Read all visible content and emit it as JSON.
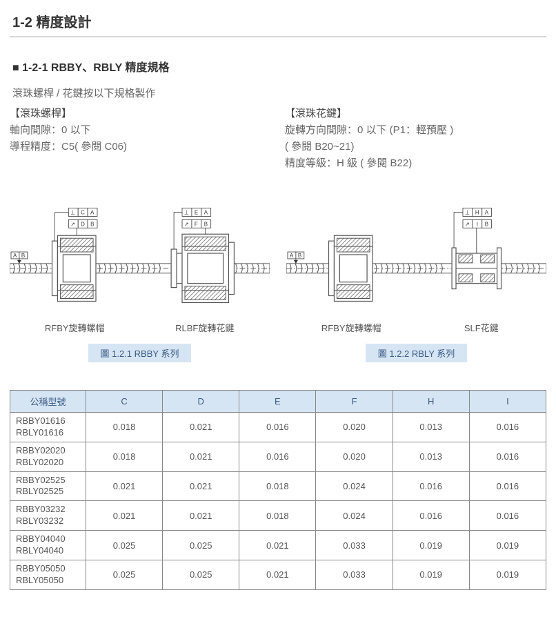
{
  "header": "1-2 精度設計",
  "subheader": "■ 1-2-1 RBBY、RBLY 精度規格",
  "intro": "滾珠螺桿 / 花鍵按以下規格製作",
  "left_spec": {
    "title": "【滾珠螺桿】",
    "l1": "軸向間隙：0 以下",
    "l2": "導程精度：C5( 參閱 C06)"
  },
  "right_spec": {
    "title": "【滾珠花鍵】",
    "l1": "旋轉方向間隙：0 以下 (P1：輕預壓 )",
    "l2": "( 參閱 B20~21)",
    "l3": "精度等級：H 級 ( 參閱 B22)"
  },
  "fig1": {
    "part1": "RFBY旋轉螺帽",
    "part2": "RLBF旋轉花鍵",
    "caption": "圖 1.2.1 RBBY 系列",
    "callouts": {
      "left_top": "C",
      "left_top2": "A",
      "left_bot": "D",
      "left_bot2": "B",
      "right_top": "E",
      "right_top2": "A",
      "right_bot": "F",
      "right_bot2": "B",
      "shaft1": "A",
      "shaft2": "B"
    },
    "symbols": {
      "perp": "⊥",
      "runout": "↗"
    }
  },
  "fig2": {
    "part1": "RFBY旋轉螺帽",
    "part2": "SLF花鍵",
    "caption": "圖 1.2.2 RBLY 系列",
    "callouts": {
      "right_top": "H",
      "right_top2": "A",
      "right_bot": "I",
      "right_bot2": "B",
      "shaft1": "A",
      "shaft2": "B"
    },
    "symbols": {
      "perp": "⊥",
      "runout": "↗"
    }
  },
  "table": {
    "headers": [
      "公稱型號",
      "C",
      "D",
      "E",
      "F",
      "H",
      "I"
    ],
    "rows": [
      {
        "model": "RBBY01616\nRBLY01616",
        "v": [
          "0.018",
          "0.021",
          "0.016",
          "0.020",
          "0.013",
          "0.016"
        ]
      },
      {
        "model": "RBBY02020\nRBLY02020",
        "v": [
          "0.018",
          "0.021",
          "0.016",
          "0.020",
          "0.013",
          "0.016"
        ]
      },
      {
        "model": "RBBY02525\nRBLY02525",
        "v": [
          "0.021",
          "0.021",
          "0.018",
          "0.024",
          "0.016",
          "0.016"
        ]
      },
      {
        "model": "RBBY03232\nRBLY03232",
        "v": [
          "0.021",
          "0.021",
          "0.018",
          "0.024",
          "0.016",
          "0.016"
        ]
      },
      {
        "model": "RBBY04040\nRBLY04040",
        "v": [
          "0.025",
          "0.025",
          "0.021",
          "0.033",
          "0.019",
          "0.019"
        ]
      },
      {
        "model": "RBBY05050\nRBLY05050",
        "v": [
          "0.025",
          "0.025",
          "0.021",
          "0.033",
          "0.019",
          "0.019"
        ]
      }
    ]
  },
  "colors": {
    "header_bg": "#d6e5f3",
    "header_fg": "#3a5a85",
    "border": "#888888",
    "text": "#555555"
  }
}
